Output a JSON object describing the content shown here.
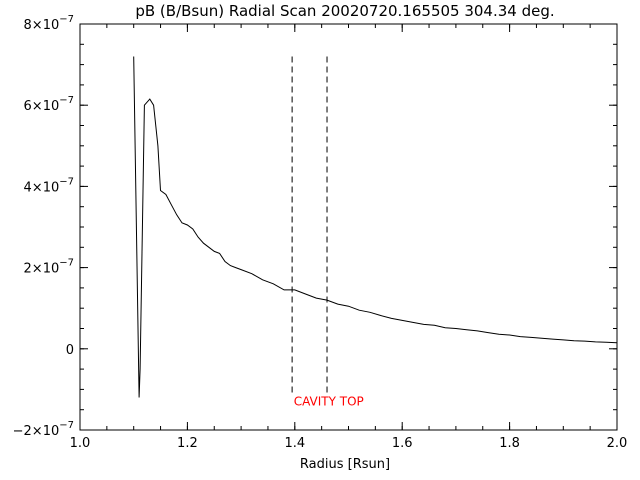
{
  "chart_data": {
    "type": "line",
    "title": "pB (B/Bsun) Radial Scan 20020720.165505 304.34 deg.",
    "xlabel": "Radius [Rsun]",
    "ylabel": "",
    "xlim": [
      1.0,
      2.0
    ],
    "ylim": [
      -2e-07,
      8e-07
    ],
    "x_ticks": [
      1.0,
      1.2,
      1.4,
      1.6,
      1.8,
      2.0
    ],
    "x_tick_labels": [
      "1.0",
      "1.2",
      "1.4",
      "1.6",
      "1.8",
      "2.0"
    ],
    "y_ticks": [
      {
        "value": -2e-07,
        "mantissa": "−2×10",
        "exp": "−7"
      },
      {
        "value": 0,
        "mantissa": "0",
        "exp": ""
      },
      {
        "value": 2e-07,
        "mantissa": "2×10",
        "exp": "−7"
      },
      {
        "value": 4e-07,
        "mantissa": "4×10",
        "exp": "−7"
      },
      {
        "value": 6e-07,
        "mantissa": "6×10",
        "exp": "−7"
      },
      {
        "value": 8e-07,
        "mantissa": "8×10",
        "exp": "−7"
      }
    ],
    "grid": false,
    "series": [
      {
        "x": [
          1.1,
          1.11,
          1.112,
          1.12,
          1.13,
          1.137,
          1.145,
          1.15,
          1.16,
          1.17,
          1.18,
          1.19,
          1.2,
          1.21,
          1.22,
          1.23,
          1.24,
          1.25,
          1.26,
          1.27,
          1.28,
          1.29,
          1.3,
          1.32,
          1.34,
          1.36,
          1.38,
          1.4,
          1.42,
          1.44,
          1.46,
          1.48,
          1.5,
          1.52,
          1.54,
          1.56,
          1.58,
          1.6,
          1.62,
          1.64,
          1.66,
          1.68,
          1.7,
          1.72,
          1.74,
          1.76,
          1.78,
          1.8,
          1.82,
          1.84,
          1.86,
          1.88,
          1.9,
          1.92,
          1.94,
          1.96,
          1.98,
          2.0
        ],
        "values": [
          7.2e-07,
          -1.2e-07,
          -5e-08,
          6e-07,
          6.15e-07,
          6e-07,
          5e-07,
          3.9e-07,
          3.8e-07,
          3.55e-07,
          3.3e-07,
          3.1e-07,
          3.05e-07,
          2.95e-07,
          2.75e-07,
          2.6e-07,
          2.5e-07,
          2.4e-07,
          2.35e-07,
          2.15e-07,
          2.05e-07,
          2e-07,
          1.95e-07,
          1.85e-07,
          1.7e-07,
          1.6e-07,
          1.45e-07,
          1.45e-07,
          1.35e-07,
          1.25e-07,
          1.2e-07,
          1.1e-07,
          1.05e-07,
          9.5e-08,
          9e-08,
          8.2e-08,
          7.5e-08,
          7e-08,
          6.5e-08,
          6e-08,
          5.8e-08,
          5.2e-08,
          5e-08,
          4.7e-08,
          4.4e-08,
          4e-08,
          3.6e-08,
          3.4e-08,
          3e-08,
          2.8e-08,
          2.6e-08,
          2.4e-08,
          2.2e-08,
          2e-08,
          1.9e-08,
          1.7e-08,
          1.6e-08,
          1.5e-08
        ],
        "color": "#000000"
      }
    ],
    "markers": {
      "x_positions": [
        1.395,
        1.46
      ],
      "y_top": 7.2e-07,
      "y_bottom": -1.1e-07,
      "style": "dashed",
      "color": "#000000"
    },
    "annotations": [
      {
        "text": "CAVITY TOP",
        "x": 1.398,
        "y": -1.3e-07,
        "color": "#ff0000"
      }
    ]
  }
}
